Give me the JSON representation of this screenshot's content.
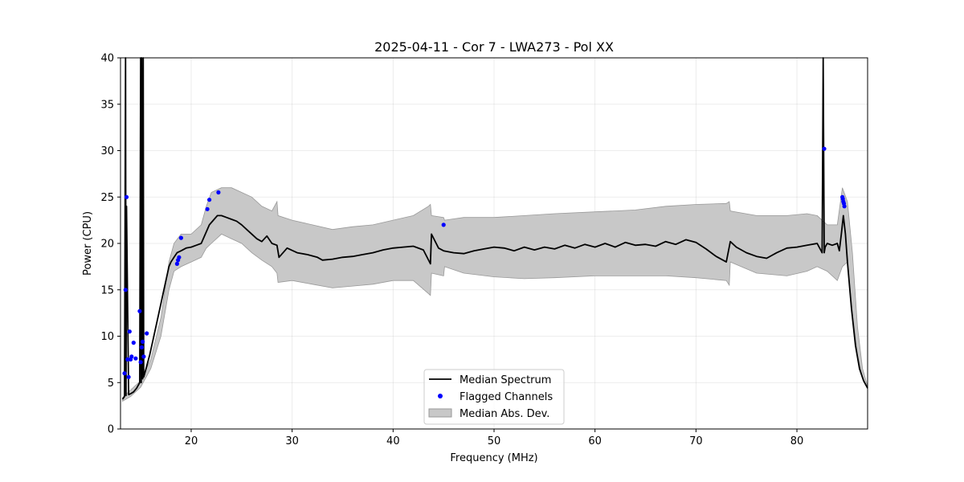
{
  "chart_data": {
    "type": "line",
    "title": "2025-04-11 - Cor 7 - LWA273 - Pol XX",
    "xlabel": "Frequency (MHz)",
    "ylabel": "Power (CPU)",
    "xlim": [
      13,
      87
    ],
    "ylim": [
      0,
      40
    ],
    "xticks": [
      20,
      30,
      40,
      50,
      60,
      70,
      80
    ],
    "yticks": [
      0,
      5,
      10,
      15,
      20,
      25,
      30,
      35,
      40
    ],
    "grid": true,
    "legend_position": "bottom-center",
    "colors": {
      "median": "#000000",
      "flagged": "#0000ff",
      "band": "#c8c8c8",
      "band_edge": "#999999"
    },
    "series": [
      {
        "name": "Median Spectrum",
        "x": [
          13.2,
          13.4,
          13.5,
          13.55,
          13.6,
          13.8,
          14.0,
          14.3,
          14.6,
          14.9,
          15.0,
          15.05,
          15.1,
          15.2,
          15.25,
          15.3,
          15.4,
          15.6,
          15.9,
          16.3,
          16.8,
          17.3,
          17.8,
          18.0,
          18.3,
          18.6,
          19.0,
          19.5,
          20.0,
          20.5,
          21.0,
          21.4,
          21.8,
          22.2,
          22.6,
          23.0,
          23.5,
          24.0,
          24.5,
          25.0,
          25.5,
          26.0,
          26.5,
          27.0,
          27.5,
          28.0,
          28.5,
          28.7,
          29.5,
          30.5,
          31.5,
          32.5,
          33.0,
          34.0,
          35.0,
          36.0,
          37.0,
          38.0,
          39.0,
          40.0,
          41.0,
          42.0,
          43.0,
          43.7,
          43.8,
          44.5,
          45.0,
          46.0,
          47.0,
          48.0,
          49.0,
          50.0,
          51.0,
          52.0,
          53.0,
          54.0,
          55.0,
          56.0,
          57.0,
          58.0,
          59.0,
          60.0,
          61.0,
          62.0,
          63.0,
          64.0,
          65.0,
          66.0,
          67.0,
          68.0,
          69.0,
          70.0,
          71.0,
          72.0,
          73.0,
          73.4,
          74.0,
          75.0,
          76.0,
          77.0,
          78.0,
          79.0,
          80.0,
          81.0,
          82.0,
          82.5,
          82.6,
          82.7,
          82.8,
          83.0,
          83.5,
          84.0,
          84.2,
          84.4,
          84.6,
          84.8,
          85.0,
          85.4,
          85.8,
          86.2,
          86.6,
          87.0
        ],
        "y": [
          3.2,
          3.5,
          40,
          3.6,
          24,
          3.7,
          3.8,
          4.0,
          4.4,
          5.0,
          40,
          5.0,
          40,
          5.4,
          40,
          5.6,
          6.0,
          6.8,
          8.0,
          10.0,
          12.5,
          15.0,
          17.5,
          18.0,
          18.5,
          19.0,
          19.2,
          19.5,
          19.6,
          19.8,
          20.0,
          21.0,
          22.0,
          22.5,
          23.0,
          23.0,
          22.8,
          22.6,
          22.4,
          22.0,
          21.5,
          21.0,
          20.5,
          20.2,
          20.8,
          20.0,
          19.8,
          18.5,
          19.5,
          19.0,
          18.8,
          18.5,
          18.2,
          18.3,
          18.5,
          18.6,
          18.8,
          19.0,
          19.3,
          19.5,
          19.6,
          19.7,
          19.3,
          17.8,
          21.0,
          19.5,
          19.2,
          19.0,
          18.9,
          19.2,
          19.4,
          19.6,
          19.5,
          19.2,
          19.6,
          19.3,
          19.6,
          19.4,
          19.8,
          19.5,
          19.9,
          19.6,
          20.0,
          19.6,
          20.1,
          19.8,
          19.9,
          19.7,
          20.2,
          19.9,
          20.4,
          20.1,
          19.4,
          18.6,
          18.0,
          20.2,
          19.6,
          19.0,
          18.6,
          18.4,
          19.0,
          19.5,
          19.6,
          19.8,
          20.0,
          19.0,
          40,
          19.0,
          19.6,
          20.0,
          19.8,
          20.0,
          19.2,
          21.0,
          23.0,
          21.0,
          18.0,
          13.0,
          9.0,
          6.5,
          5.2,
          4.4
        ]
      },
      {
        "name": "Flagged Channels",
        "x": [
          13.4,
          13.5,
          13.6,
          13.7,
          13.8,
          13.9,
          14.0,
          14.1,
          14.3,
          14.5,
          14.9,
          15.0,
          15.1,
          15.2,
          15.3,
          15.6,
          18.6,
          18.7,
          18.8,
          19.0,
          21.6,
          21.8,
          22.7,
          45.0,
          82.7,
          84.5,
          84.55,
          84.6,
          84.65,
          84.7
        ],
        "y": [
          6.0,
          15.0,
          25.0,
          7.5,
          5.6,
          10.5,
          7.5,
          7.8,
          9.3,
          7.6,
          12.7,
          7.2,
          8.8,
          9.4,
          7.8,
          10.3,
          17.8,
          18.2,
          18.5,
          20.6,
          23.7,
          24.7,
          25.5,
          22.0,
          30.2,
          25.0,
          24.8,
          24.5,
          24.3,
          24.0
        ]
      }
    ],
    "band": {
      "name": "Median Abs. Dev.",
      "x": [
        13.2,
        14.0,
        15.0,
        16.0,
        17.0,
        17.8,
        18.3,
        19.0,
        20.0,
        21.0,
        21.5,
        22.0,
        23.0,
        24.0,
        25.0,
        26.0,
        27.0,
        28.0,
        28.5,
        28.6,
        30.0,
        32.0,
        34.0,
        36.0,
        38.0,
        40.0,
        42.0,
        43.5,
        43.7,
        43.8,
        45.0,
        45.1,
        47.0,
        50.0,
        53.0,
        56.0,
        60.0,
        64.0,
        67.0,
        70.0,
        73.0,
        73.3,
        73.4,
        76.0,
        79.0,
        81.0,
        82.0,
        83.0,
        84.0,
        84.5,
        85.0,
        85.5,
        86.0,
        86.5,
        87.0
      ],
      "lower": [
        3.0,
        3.5,
        4.5,
        6.5,
        10.0,
        15.0,
        17.0,
        17.5,
        18.0,
        18.5,
        19.5,
        20.0,
        21.0,
        20.5,
        20.0,
        19.0,
        18.2,
        17.5,
        16.8,
        15.8,
        16.0,
        15.6,
        15.2,
        15.4,
        15.6,
        16.0,
        16.0,
        14.6,
        14.4,
        16.8,
        16.5,
        17.5,
        16.8,
        16.4,
        16.2,
        16.3,
        16.5,
        16.5,
        16.5,
        16.3,
        16.0,
        15.5,
        18.0,
        16.8,
        16.5,
        17.0,
        17.5,
        17.0,
        16.0,
        17.5,
        18.0,
        12.5,
        8.0,
        5.5,
        4.3
      ],
      "upper": [
        3.4,
        4.2,
        5.2,
        7.5,
        12.0,
        18.0,
        20.0,
        21.0,
        21.0,
        22.0,
        24.0,
        25.5,
        26.0,
        26.0,
        25.5,
        25.0,
        24.0,
        23.5,
        24.5,
        23.0,
        22.5,
        22.0,
        21.5,
        21.8,
        22.0,
        22.5,
        23.0,
        24.0,
        24.2,
        23.0,
        22.8,
        22.5,
        22.8,
        22.8,
        23.0,
        23.2,
        23.4,
        23.6,
        24.0,
        24.2,
        24.3,
        24.5,
        23.5,
        23.0,
        23.0,
        23.2,
        23.0,
        22.0,
        22.0,
        26.0,
        24.5,
        19.0,
        11.0,
        6.5,
        4.6
      ]
    },
    "legend": [
      {
        "label": "Median Spectrum",
        "kind": "line"
      },
      {
        "label": "Flagged Channels",
        "kind": "marker"
      },
      {
        "label": "Median Abs. Dev.",
        "kind": "patch"
      }
    ]
  }
}
